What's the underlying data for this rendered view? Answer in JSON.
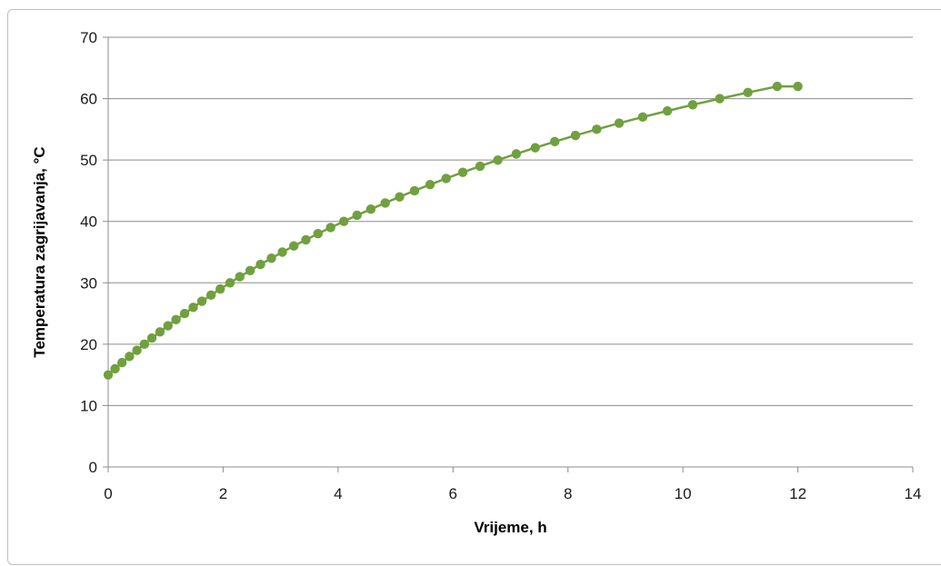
{
  "chart_data": {
    "type": "line",
    "xlabel": "Vrijeme, h",
    "ylabel": "Temperatura zagrijavanja, °C",
    "xlim": [
      0,
      14
    ],
    "ylim": [
      0,
      70
    ],
    "x_ticks": [
      0,
      2,
      4,
      6,
      8,
      10,
      12,
      14
    ],
    "y_ticks": [
      0,
      10,
      20,
      30,
      40,
      50,
      60,
      70
    ],
    "x_tick_labels": [
      "0",
      "2",
      "4",
      "6",
      "8",
      "10",
      "12",
      "14"
    ],
    "y_tick_labels": [
      "0",
      "10",
      "20",
      "30",
      "40",
      "50",
      "60",
      "70"
    ],
    "grid": "horizontal",
    "legend": "none",
    "series": [
      {
        "color": "#70a03f",
        "marker": "circle",
        "x": [
          0,
          0.12,
          0.24,
          0.37,
          0.5,
          0.63,
          0.76,
          0.9,
          1.04,
          1.18,
          1.33,
          1.48,
          1.63,
          1.79,
          1.95,
          2.12,
          2.29,
          2.47,
          2.65,
          2.84,
          3.03,
          3.23,
          3.44,
          3.65,
          3.87,
          4.1,
          4.33,
          4.57,
          4.82,
          5.07,
          5.33,
          5.6,
          5.88,
          6.17,
          6.47,
          6.78,
          7.1,
          7.43,
          7.77,
          8.13,
          8.5,
          8.89,
          9.3,
          9.73,
          10.17,
          10.64,
          11.13,
          11.64,
          12.0
        ],
        "y": [
          15,
          16,
          17,
          18,
          19,
          20,
          21,
          22,
          23,
          24,
          25,
          26,
          27,
          28,
          29,
          30,
          31,
          32,
          33,
          34,
          35,
          36,
          37,
          38,
          39,
          40,
          41,
          42,
          43,
          44,
          45,
          46,
          47,
          48,
          49,
          50,
          51,
          52,
          53,
          54,
          55,
          56,
          57,
          58,
          59,
          60,
          61,
          62,
          62
        ]
      }
    ]
  }
}
